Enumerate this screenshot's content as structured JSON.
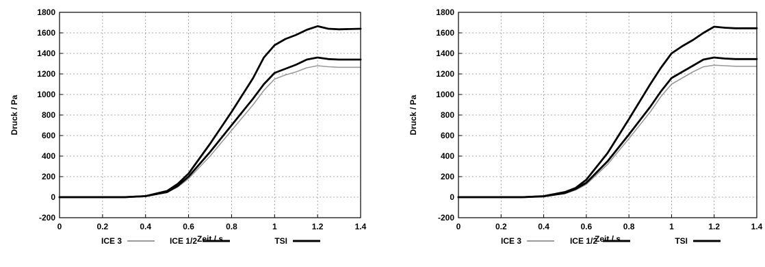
{
  "chart_data": [
    {
      "type": "line",
      "title": "",
      "xlabel": "Zeit / s",
      "ylabel": "Druck / Pa",
      "xlim": [
        0,
        1.4
      ],
      "ylim": [
        -200,
        1800
      ],
      "xticks": [
        "0",
        "0.2",
        "0.4",
        "0.6",
        "0.8",
        "1",
        "1.2",
        "1.4"
      ],
      "yticks": [
        "-200",
        "0",
        "200",
        "400",
        "600",
        "800",
        "1000",
        "1200",
        "1400",
        "1600",
        "1800"
      ],
      "grid": true,
      "legend": "bottom",
      "series": [
        {
          "name": "TSI",
          "color": "#000000",
          "x": [
            0,
            0.3,
            0.4,
            0.5,
            0.55,
            0.6,
            0.7,
            0.8,
            0.9,
            0.95,
            1.0,
            1.05,
            1.1,
            1.15,
            1.2,
            1.25,
            1.3,
            1.4
          ],
          "y": [
            0,
            0,
            10,
            60,
            130,
            230,
            520,
            830,
            1160,
            1360,
            1480,
            1540,
            1580,
            1630,
            1665,
            1640,
            1635,
            1640
          ]
        },
        {
          "name": "ICE 1/2",
          "color": "#000000",
          "x": [
            0,
            0.3,
            0.4,
            0.5,
            0.55,
            0.6,
            0.7,
            0.8,
            0.9,
            0.95,
            1.0,
            1.05,
            1.1,
            1.15,
            1.2,
            1.25,
            1.3,
            1.4
          ],
          "y": [
            0,
            0,
            10,
            50,
            110,
            200,
            440,
            700,
            960,
            1100,
            1210,
            1250,
            1290,
            1340,
            1360,
            1345,
            1340,
            1340
          ]
        },
        {
          "name": "ICE 3",
          "color": "#9a9a9a",
          "x": [
            0,
            0.3,
            0.4,
            0.5,
            0.55,
            0.6,
            0.7,
            0.8,
            0.9,
            0.95,
            1.0,
            1.05,
            1.1,
            1.15,
            1.2,
            1.25,
            1.3,
            1.4
          ],
          "y": [
            0,
            0,
            8,
            45,
            100,
            180,
            400,
            650,
            900,
            1040,
            1150,
            1190,
            1220,
            1260,
            1280,
            1270,
            1265,
            1265
          ]
        }
      ]
    },
    {
      "type": "line",
      "title": "",
      "xlabel": "Zeit / s",
      "ylabel": "Druck / Pa",
      "xlim": [
        0,
        1.4
      ],
      "ylim": [
        -200,
        1800
      ],
      "xticks": [
        "0",
        "0.2",
        "0.4",
        "0.6",
        "0.8",
        "1",
        "1.2",
        "1.4"
      ],
      "yticks": [
        "-200",
        "0",
        "200",
        "400",
        "600",
        "800",
        "1000",
        "1200",
        "1400",
        "1600",
        "1800"
      ],
      "grid": true,
      "legend": "bottom",
      "series": [
        {
          "name": "TSI",
          "color": "#000000",
          "x": [
            0,
            0.3,
            0.4,
            0.5,
            0.55,
            0.6,
            0.7,
            0.8,
            0.9,
            0.95,
            1.0,
            1.05,
            1.1,
            1.15,
            1.2,
            1.25,
            1.3,
            1.4
          ],
          "y": [
            0,
            0,
            10,
            50,
            90,
            170,
            430,
            760,
            1100,
            1260,
            1400,
            1470,
            1530,
            1600,
            1660,
            1650,
            1645,
            1645
          ]
        },
        {
          "name": "ICE 1/2",
          "color": "#000000",
          "x": [
            0,
            0.3,
            0.4,
            0.5,
            0.55,
            0.6,
            0.7,
            0.8,
            0.9,
            0.95,
            1.0,
            1.05,
            1.1,
            1.15,
            1.2,
            1.25,
            1.3,
            1.4
          ],
          "y": [
            0,
            0,
            8,
            40,
            80,
            140,
            350,
            610,
            880,
            1030,
            1160,
            1220,
            1280,
            1340,
            1360,
            1350,
            1345,
            1345
          ]
        },
        {
          "name": "ICE 3",
          "color": "#9a9a9a",
          "x": [
            0,
            0.3,
            0.4,
            0.5,
            0.55,
            0.6,
            0.7,
            0.8,
            0.9,
            0.95,
            1.0,
            1.05,
            1.1,
            1.15,
            1.2,
            1.25,
            1.3,
            1.4
          ],
          "y": [
            0,
            0,
            7,
            35,
            70,
            125,
            320,
            570,
            830,
            980,
            1100,
            1160,
            1220,
            1270,
            1285,
            1280,
            1275,
            1275
          ]
        }
      ]
    }
  ]
}
